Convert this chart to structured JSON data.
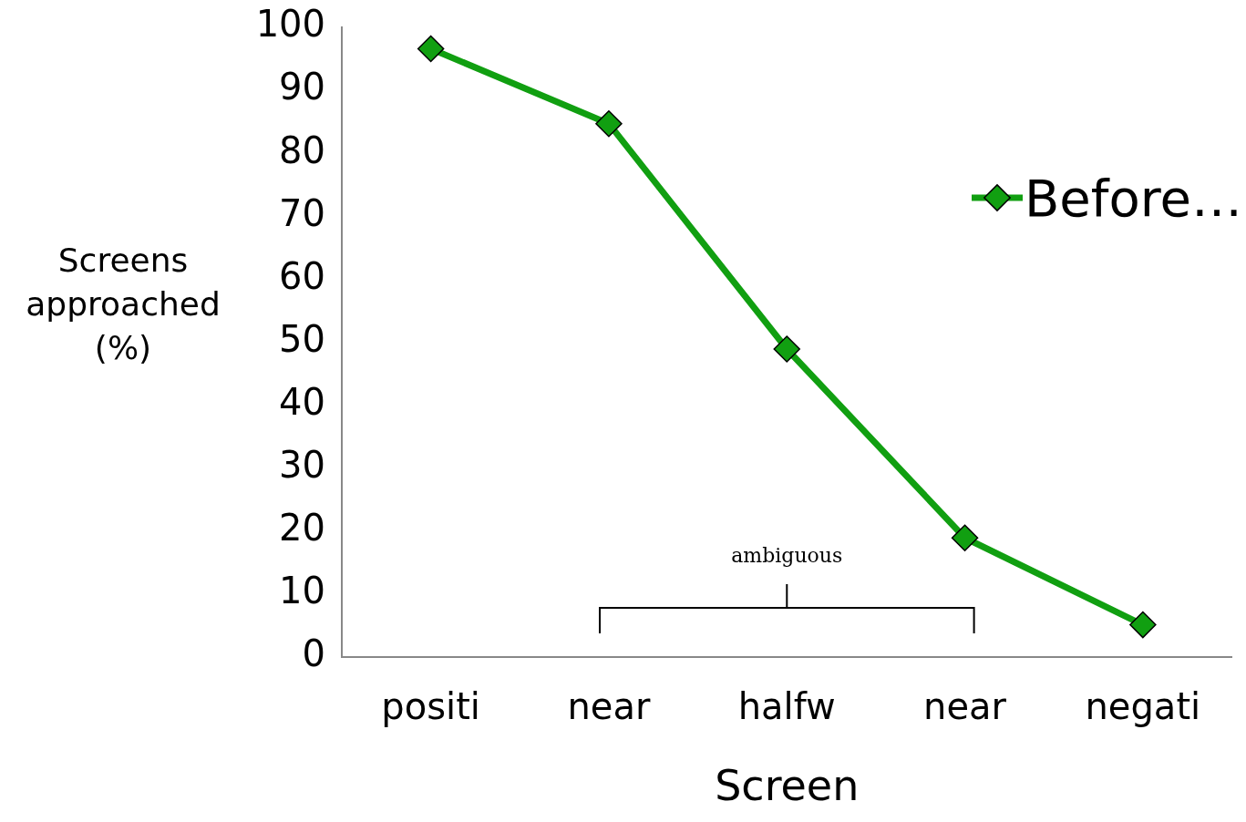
{
  "chart_data": {
    "type": "line",
    "xlabel": "Screen",
    "ylabel": "Screens approached (%)",
    "categories": [
      "positi",
      "near",
      "halfw",
      "near",
      "negati"
    ],
    "series": [
      {
        "name": "Before…",
        "color": "#119f11",
        "values": [
          96.6,
          84.7,
          48.9,
          18.9,
          5.1
        ]
      }
    ],
    "ylim": [
      0,
      100
    ],
    "yticks": [
      0,
      10,
      20,
      30,
      40,
      50,
      60,
      70,
      80,
      90,
      100
    ],
    "grid": false,
    "legend": "top right",
    "marker": "diamond",
    "line_style": "solid",
    "annotations": [
      "ambiguous"
    ]
  }
}
